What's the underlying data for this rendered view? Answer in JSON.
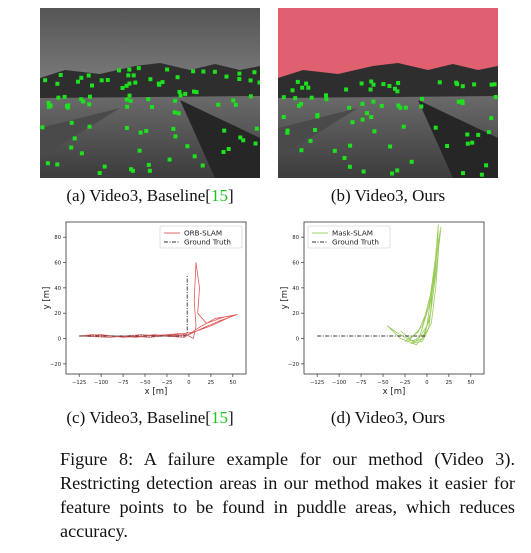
{
  "colors": {
    "feature_point": "#1fe01f",
    "mask_overlay": "#e06070",
    "orb_slam": "#e05a5a",
    "mask_slam": "#9acb5a",
    "ground_truth": "#333333",
    "reference": "#1bc41b"
  },
  "figure": {
    "captions": {
      "a": {
        "text": "(a) Video3, Baseline[",
        "ref": "15",
        "close": "]"
      },
      "b": {
        "text": "(b) Video3, Ours"
      },
      "c": {
        "text": "(c) Video3, Baseline[",
        "ref": "15",
        "close": "]"
      },
      "d": {
        "text": "(d) Video3, Ours"
      }
    },
    "main_caption": "Figure 8: A failure example for our method (Video 3). Restricting detection areas in our method makes it easier for feature points to be found in puddle areas, which reduces accuracy."
  },
  "chart_data": [
    {
      "type": "line",
      "panel": "c",
      "xlabel": "x [m]",
      "ylabel": "y [m]",
      "xticks": [
        -125,
        -100,
        -75,
        -50,
        -25,
        0,
        25,
        50
      ],
      "yticks": [
        -20,
        0,
        20,
        40,
        60,
        80
      ],
      "xlim": [
        -140,
        65
      ],
      "ylim": [
        -28,
        92
      ],
      "legend": "top-right",
      "series": [
        {
          "name": "ORB-SLAM",
          "style": "solid",
          "color": "#e05a5a",
          "points": [
            [
              -125,
              2
            ],
            [
              -100,
              3
            ],
            [
              -75,
              1
            ],
            [
              -50,
              2
            ],
            [
              -25,
              3
            ],
            [
              -10,
              4
            ],
            [
              0,
              2
            ],
            [
              5,
              0
            ],
            [
              8,
              10
            ],
            [
              6,
              30
            ],
            [
              8,
              60
            ],
            [
              12,
              40
            ],
            [
              10,
              20
            ],
            [
              20,
              12
            ],
            [
              40,
              17
            ],
            [
              55,
              19
            ],
            [
              35,
              14
            ],
            [
              15,
              8
            ],
            [
              0,
              3
            ],
            [
              -20,
              2
            ],
            [
              -40,
              3
            ],
            [
              -60,
              1
            ],
            [
              -85,
              2
            ],
            [
              -110,
              3
            ],
            [
              -125,
              2
            ],
            [
              -90,
              1
            ],
            [
              -55,
              3
            ],
            [
              -30,
              2
            ],
            [
              -5,
              1
            ],
            [
              10,
              8
            ],
            [
              30,
              16
            ],
            [
              50,
              18
            ],
            [
              25,
              10
            ],
            [
              5,
              5
            ],
            [
              -15,
              3
            ],
            [
              -45,
              1
            ],
            [
              -70,
              2
            ],
            [
              -100,
              2
            ]
          ]
        },
        {
          "name": "Ground Truth",
          "style": "dashdot",
          "color": "#333333",
          "points": [
            [
              -125,
              2
            ],
            [
              -75,
              2
            ],
            [
              -25,
              2
            ],
            [
              -5,
              2
            ],
            [
              -2,
              4
            ],
            [
              -2,
              50
            ]
          ]
        }
      ]
    },
    {
      "type": "line",
      "panel": "d",
      "xlabel": "x [m]",
      "ylabel": "y [m]",
      "xticks": [
        -125,
        -100,
        -75,
        -50,
        -25,
        0,
        25,
        50
      ],
      "yticks": [
        -20,
        0,
        20,
        40,
        60,
        80
      ],
      "xlim": [
        -140,
        65
      ],
      "ylim": [
        -28,
        92
      ],
      "legend": "top-left",
      "series": [
        {
          "name": "Mask-SLAM",
          "style": "solid",
          "color": "#9acb5a",
          "points": [
            [
              -30,
              6
            ],
            [
              -15,
              -3
            ],
            [
              -5,
              0
            ],
            [
              5,
              12
            ],
            [
              10,
              40
            ],
            [
              15,
              85
            ],
            [
              10,
              60
            ],
            [
              5,
              30
            ],
            [
              -10,
              5
            ],
            [
              -25,
              -2
            ],
            [
              -10,
              -1
            ],
            [
              0,
              10
            ],
            [
              8,
              50
            ],
            [
              13,
              90
            ],
            [
              12,
              70
            ],
            [
              6,
              40
            ],
            [
              -5,
              10
            ],
            [
              -20,
              -1
            ],
            [
              -35,
              5
            ],
            [
              -45,
              10
            ],
            [
              -30,
              0
            ],
            [
              -12,
              -5
            ],
            [
              -3,
              2
            ],
            [
              4,
              20
            ],
            [
              9,
              60
            ],
            [
              14,
              80
            ],
            [
              8,
              55
            ],
            [
              2,
              25
            ],
            [
              -8,
              2
            ],
            [
              -18,
              -4
            ],
            [
              -5,
              -2
            ],
            [
              2,
              8
            ],
            [
              7,
              35
            ],
            [
              11,
              65
            ],
            [
              16,
              88
            ],
            [
              10,
              50
            ],
            [
              3,
              15
            ],
            [
              -6,
              -1
            ]
          ]
        },
        {
          "name": "Ground Truth",
          "style": "dashdot",
          "color": "#333333",
          "points": [
            [
              -125,
              2
            ],
            [
              -75,
              2
            ],
            [
              -25,
              2
            ],
            [
              0,
              2
            ]
          ]
        }
      ]
    }
  ]
}
